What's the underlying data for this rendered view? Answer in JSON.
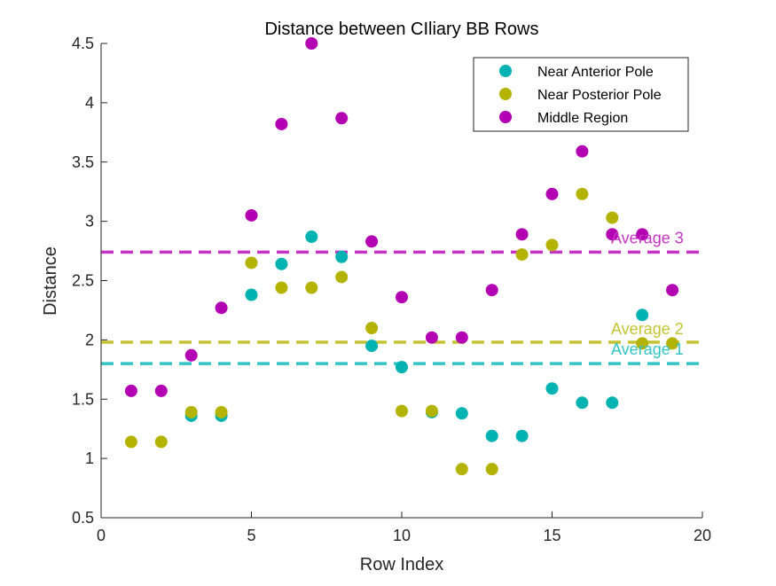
{
  "chart_data": {
    "type": "scatter",
    "title": "Distance between CIliary BB Rows",
    "xlabel": "Row Index",
    "ylabel": "Distance",
    "xlim": [
      0,
      20
    ],
    "ylim": [
      0.5,
      4.5
    ],
    "xticks": [
      0,
      5,
      10,
      15,
      20
    ],
    "yticks": [
      0.5,
      1,
      1.5,
      2,
      2.5,
      3,
      3.5,
      4,
      4.5
    ],
    "xtick_labels": [
      "0",
      "5",
      "10",
      "15",
      "20"
    ],
    "ytick_labels": [
      "0.5",
      "1",
      "1.5",
      "2",
      "2.5",
      "3",
      "3.5",
      "4",
      "4.5"
    ],
    "grid": false,
    "legend_position": "top-right",
    "series": [
      {
        "name": "Near Anterior Pole",
        "color": "#00b3b3",
        "x": [
          3,
          4,
          5,
          6,
          7,
          8,
          9,
          10,
          11,
          12,
          13,
          14,
          15,
          16,
          17,
          18
        ],
        "y": [
          1.36,
          1.36,
          2.38,
          2.64,
          2.87,
          2.7,
          1.95,
          1.77,
          1.39,
          1.38,
          1.19,
          1.19,
          1.59,
          1.47,
          1.47,
          2.21
        ]
      },
      {
        "name": "Near Posterior Pole",
        "color": "#b3b300",
        "x": [
          1,
          2,
          3,
          4,
          5,
          6,
          7,
          8,
          9,
          10,
          11,
          12,
          13,
          14,
          15,
          16,
          17,
          18,
          19
        ],
        "y": [
          1.14,
          1.14,
          1.39,
          1.39,
          2.65,
          2.44,
          2.44,
          2.53,
          2.1,
          1.4,
          1.4,
          0.91,
          0.91,
          2.72,
          2.8,
          3.23,
          3.03,
          1.97,
          1.97
        ]
      },
      {
        "name": "Middle Region",
        "color": "#b300b3",
        "x": [
          1,
          2,
          3,
          4,
          5,
          6,
          7,
          8,
          9,
          10,
          11,
          12,
          13,
          14,
          15,
          16,
          17,
          18,
          19
        ],
        "y": [
          1.57,
          1.57,
          1.87,
          2.27,
          3.05,
          3.82,
          4.5,
          3.87,
          2.83,
          2.36,
          2.02,
          2.02,
          2.42,
          2.89,
          3.23,
          3.59,
          2.89,
          2.89,
          2.42
        ]
      }
    ],
    "reference_lines": [
      {
        "label": "Average 1",
        "y": 1.8,
        "color": "#33c4c4"
      },
      {
        "label": "Average 2",
        "y": 1.98,
        "color": "#c4c433"
      },
      {
        "label": "Average 3",
        "y": 2.74,
        "color": "#c433c4"
      }
    ]
  }
}
